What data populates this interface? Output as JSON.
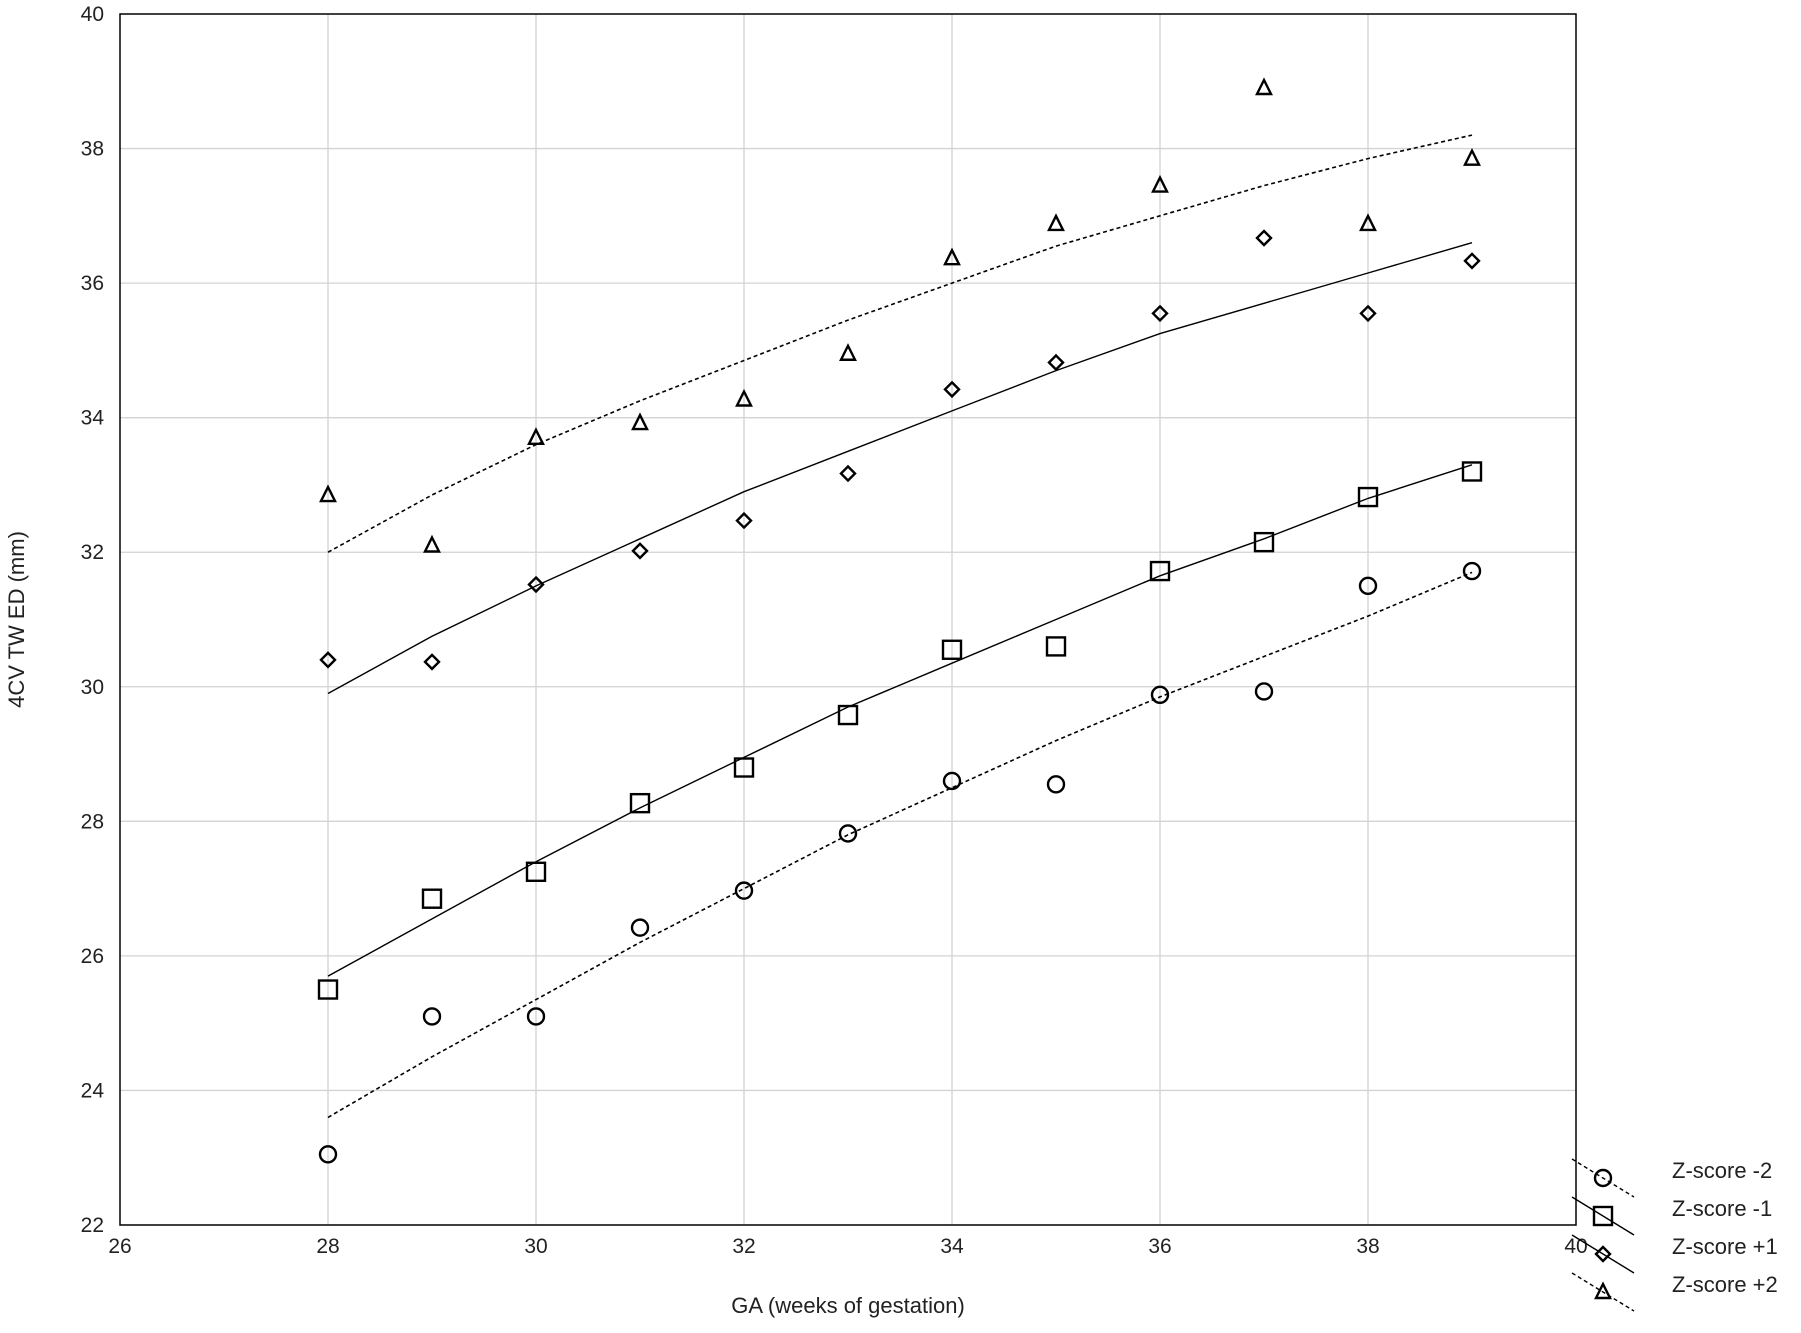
{
  "chart_data": {
    "type": "scatter",
    "xlabel": "GA (weeks of gestation)",
    "ylabel": "4CV TW ED (mm)",
    "xlim": [
      26,
      40
    ],
    "ylim": [
      22,
      40
    ],
    "x_ticks": [
      26,
      28,
      30,
      32,
      34,
      36,
      38,
      40
    ],
    "y_ticks": [
      22,
      24,
      26,
      28,
      30,
      32,
      34,
      36,
      38,
      40
    ],
    "grid": true,
    "legend_position": "bottom-right, outside plot",
    "series": [
      {
        "name": "Z-score -2",
        "marker": "circle",
        "line_style": "dashed",
        "x": [
          28,
          29,
          30,
          31,
          32,
          33,
          34,
          35,
          36,
          37,
          38,
          39
        ],
        "values": [
          23.05,
          25.1,
          25.1,
          26.42,
          26.97,
          27.82,
          28.6,
          28.55,
          29.88,
          29.93,
          31.5,
          31.72
        ],
        "fit_x": [
          28,
          29,
          30,
          31,
          32,
          33,
          34,
          35,
          36,
          37,
          38,
          39
        ],
        "fit_y": [
          23.6,
          24.5,
          25.35,
          26.2,
          27.0,
          27.8,
          28.5,
          29.2,
          29.85,
          30.45,
          31.05,
          31.7
        ]
      },
      {
        "name": "Z-score -1",
        "marker": "square",
        "line_style": "solid",
        "x": [
          28,
          29,
          30,
          31,
          32,
          33,
          34,
          35,
          36,
          37,
          38,
          39
        ],
        "values": [
          25.5,
          26.85,
          27.25,
          28.27,
          28.8,
          29.58,
          30.55,
          30.6,
          31.72,
          32.15,
          32.82,
          33.2
        ],
        "fit_x": [
          28,
          29,
          30,
          31,
          32,
          33,
          34,
          35,
          36,
          37,
          38,
          39
        ],
        "fit_y": [
          25.7,
          26.55,
          27.4,
          28.2,
          28.95,
          29.7,
          30.35,
          31.0,
          31.65,
          32.2,
          32.8,
          33.3
        ]
      },
      {
        "name": "Z-score +1",
        "marker": "diamond",
        "line_style": "solid",
        "x": [
          28,
          29,
          30,
          31,
          32,
          33,
          34,
          35,
          36,
          37,
          38,
          39
        ],
        "values": [
          30.4,
          30.37,
          31.52,
          32.02,
          32.47,
          33.17,
          34.42,
          34.82,
          35.55,
          36.67,
          35.55,
          36.33
        ],
        "fit_x": [
          28,
          29,
          30,
          31,
          32,
          33,
          34,
          35,
          36,
          37,
          38,
          39
        ],
        "fit_y": [
          29.9,
          30.75,
          31.5,
          32.2,
          32.9,
          33.5,
          34.1,
          34.7,
          35.25,
          35.7,
          36.15,
          36.6
        ]
      },
      {
        "name": "Z-score +2",
        "marker": "triangle",
        "line_style": "dashed",
        "x": [
          28,
          29,
          30,
          31,
          32,
          33,
          34,
          35,
          36,
          37,
          38,
          39
        ],
        "values": [
          32.85,
          32.1,
          33.7,
          33.92,
          34.27,
          34.95,
          36.37,
          36.88,
          37.45,
          38.9,
          36.88,
          37.85
        ],
        "fit_x": [
          28,
          29,
          30,
          31,
          32,
          33,
          34,
          35,
          36,
          37,
          38,
          39
        ],
        "fit_y": [
          32.0,
          32.85,
          33.6,
          34.25,
          34.85,
          35.45,
          36.0,
          36.55,
          37.0,
          37.45,
          37.85,
          38.2
        ]
      }
    ]
  }
}
